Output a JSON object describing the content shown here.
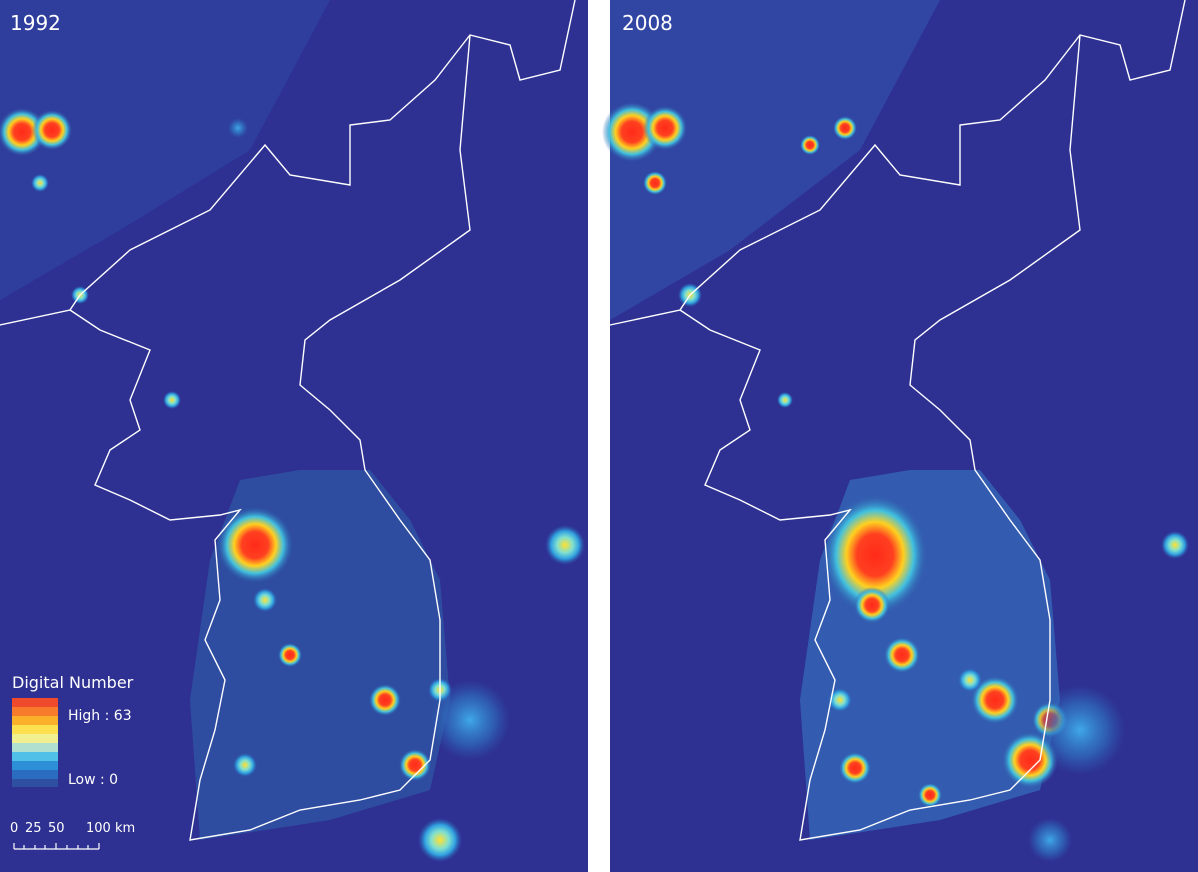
{
  "panels": [
    {
      "label": "1992"
    },
    {
      "label": "2008"
    }
  ],
  "legend": {
    "title": "Digital Number",
    "high": "High : 63",
    "low": "Low : 0"
  },
  "scale_bar": {
    "labels": [
      "0",
      "25",
      "50",
      "100 km"
    ]
  }
}
